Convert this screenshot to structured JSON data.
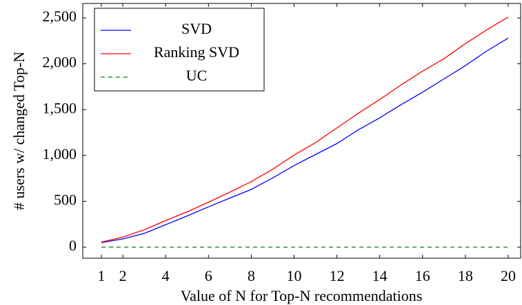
{
  "chart_data": {
    "type": "line",
    "xlabel": "Value of N for Top-N recommendations",
    "ylabel": "# users w/ changed Top-N",
    "x": [
      1,
      2,
      3,
      4,
      5,
      6,
      7,
      8,
      9,
      10,
      11,
      12,
      13,
      14,
      15,
      16,
      17,
      18,
      19,
      20
    ],
    "series": [
      {
        "name": "SVD",
        "color": "#0000ff",
        "dash": false,
        "values": [
          50,
          90,
          150,
          245,
          340,
          440,
          535,
          630,
          755,
          890,
          1010,
          1130,
          1280,
          1410,
          1555,
          1690,
          1835,
          1980,
          2140,
          2280
        ]
      },
      {
        "name": "Ranking SVD",
        "color": "#ff0000",
        "dash": false,
        "values": [
          55,
          110,
          190,
          290,
          385,
          490,
          600,
          715,
          850,
          1005,
          1140,
          1300,
          1460,
          1610,
          1770,
          1920,
          2055,
          2220,
          2370,
          2510
        ]
      },
      {
        "name": "UC",
        "color": "#008000",
        "dash": true,
        "values": [
          0,
          0,
          0,
          0,
          0,
          0,
          0,
          0,
          0,
          0,
          0,
          0,
          0,
          0,
          0,
          0,
          0,
          0,
          0,
          0
        ]
      }
    ],
    "xlim": [
      0.13,
      20.58
    ],
    "xticks": [
      1,
      2,
      4,
      6,
      8,
      10,
      12,
      14,
      16,
      18,
      20
    ],
    "ylim": [
      -120,
      2658
    ],
    "yticks": [
      0,
      500,
      {
        "value": 1000,
        "label": "1,000"
      },
      {
        "value": 1500,
        "label": "1,500"
      },
      {
        "value": 2000,
        "label": "2,000"
      },
      {
        "value": 2500,
        "label": "2,500"
      }
    ],
    "legend": "upper left"
  }
}
